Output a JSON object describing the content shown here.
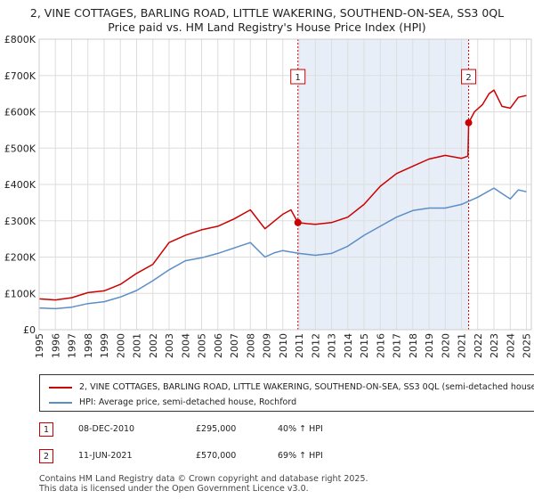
{
  "chart_data": {
    "type": "line",
    "title_line1": "2, VINE COTTAGES, BARLING ROAD, LITTLE WAKERING, SOUTHEND-ON-SEA, SS3 0QL",
    "title_line2": "Price paid vs. HM Land Registry's House Price Index (HPI)",
    "ylim": [
      0,
      800000
    ],
    "xlim": [
      1995,
      2025.3
    ],
    "y_ticks": [
      {
        "value": 0,
        "label": "£0"
      },
      {
        "value": 100000,
        "label": "£100K"
      },
      {
        "value": 200000,
        "label": "£200K"
      },
      {
        "value": 300000,
        "label": "£300K"
      },
      {
        "value": 400000,
        "label": "£400K"
      },
      {
        "value": 500000,
        "label": "£500K"
      },
      {
        "value": 600000,
        "label": "£600K"
      },
      {
        "value": 700000,
        "label": "£700K"
      },
      {
        "value": 800000,
        "label": "£800K"
      }
    ],
    "x_ticks": [
      "1995",
      "1996",
      "1997",
      "1998",
      "1999",
      "2000",
      "2001",
      "2002",
      "2003",
      "2004",
      "2005",
      "2006",
      "2007",
      "2008",
      "2009",
      "2010",
      "2011",
      "2012",
      "2013",
      "2014",
      "2015",
      "2016",
      "2017",
      "2018",
      "2019",
      "2020",
      "2021",
      "2022",
      "2023",
      "2024",
      "2025"
    ],
    "shaded_region": [
      2010.93,
      2021.44
    ],
    "series": [
      {
        "name": "2, VINE COTTAGES, BARLING ROAD, LITTLE WAKERING, SOUTHEND-ON-SEA, SS3 0QL (semi-detached house)",
        "color": "#cc0000",
        "x": [
          1995,
          1996,
          1997,
          1998,
          1999,
          2000,
          2001,
          2002,
          2003,
          2004,
          2005,
          2006,
          2007,
          2008,
          2008.9,
          2009.5,
          2010,
          2010.5,
          2010.93,
          2011.5,
          2012,
          2013,
          2014,
          2015,
          2016,
          2017,
          2018,
          2019,
          2020,
          2021,
          2021.4,
          2021.44,
          2021.8,
          2022.3,
          2022.7,
          2023,
          2023.5,
          2024,
          2024.5,
          2025
        ],
        "values": [
          85000,
          82000,
          88000,
          102000,
          107000,
          125000,
          155000,
          180000,
          240000,
          260000,
          275000,
          285000,
          305000,
          330000,
          278000,
          300000,
          318000,
          330000,
          295000,
          292000,
          290000,
          295000,
          310000,
          345000,
          395000,
          430000,
          450000,
          470000,
          480000,
          472000,
          478000,
          570000,
          600000,
          620000,
          650000,
          660000,
          615000,
          610000,
          640000,
          645000
        ]
      },
      {
        "name": "HPI: Average price, semi-detached house, Rochford",
        "color": "#5b8ec7",
        "x": [
          1995,
          1996,
          1997,
          1998,
          1999,
          2000,
          2001,
          2002,
          2003,
          2004,
          2005,
          2006,
          2007,
          2008,
          2008.9,
          2009.5,
          2010,
          2011,
          2012,
          2013,
          2014,
          2015,
          2016,
          2017,
          2018,
          2019,
          2020,
          2021,
          2022,
          2023,
          2023.5,
          2024,
          2024.5,
          2025
        ],
        "values": [
          60000,
          58000,
          62000,
          72000,
          77000,
          90000,
          108000,
          135000,
          165000,
          190000,
          198000,
          210000,
          225000,
          240000,
          200000,
          212000,
          218000,
          210000,
          205000,
          210000,
          230000,
          260000,
          285000,
          310000,
          328000,
          335000,
          335000,
          345000,
          365000,
          390000,
          375000,
          360000,
          385000,
          380000
        ]
      }
    ],
    "sales": [
      {
        "id": "1",
        "x": 2010.93,
        "value": 295000
      },
      {
        "id": "2",
        "x": 2021.44,
        "value": 570000
      }
    ]
  },
  "legend": {
    "property_label": "2, VINE COTTAGES, BARLING ROAD, LITTLE WAKERING, SOUTHEND-ON-SEA, SS3 0QL (semi-detached house)",
    "hpi_label": "HPI: Average price, semi-detached house, Rochford"
  },
  "transactions": [
    {
      "num": "1",
      "date": "08-DEC-2010",
      "price": "£295,000",
      "hpi": "40% ↑ HPI"
    },
    {
      "num": "2",
      "date": "11-JUN-2021",
      "price": "£570,000",
      "hpi": "69% ↑ HPI"
    }
  ],
  "footer": {
    "line1": "Contains HM Land Registry data © Crown copyright and database right 2025.",
    "line2": "This data is licensed under the Open Government Licence v3.0."
  },
  "colors": {
    "property": "#cc0000",
    "hpi": "#5b8ec7",
    "shade": "#e8eef8",
    "grid": "#dddddd"
  }
}
